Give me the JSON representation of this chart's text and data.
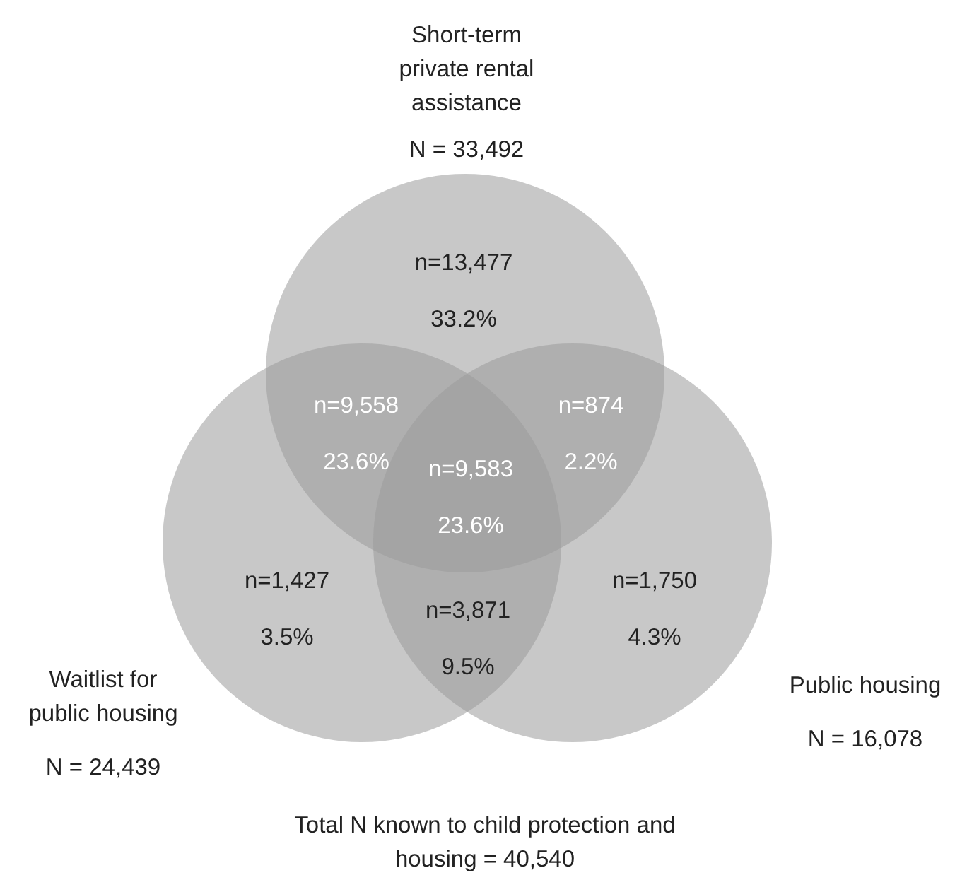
{
  "chart_data": {
    "type": "other",
    "categories": [
      "Short-term private rental assistance",
      "Waitlist for public housing",
      "Public housing"
    ],
    "values": [
      33492,
      24439,
      16078
    ],
    "value_labels": [
      "N = 33,492",
      "N = 24,439",
      "N = 16,078"
    ],
    "colors": [
      "#9a9a9a",
      "#9a9a9a",
      "#9a9a9a"
    ],
    "annotations": [
      "n=13,477",
      "33.2%",
      "n=9,558",
      "23.6%",
      "n=874",
      "2.2%",
      "n=9,583",
      "23.6%",
      "n=1,427",
      "3.5%",
      "n=3,871",
      "9.5%",
      "n=1,750",
      "4.3%",
      "Total N known to child protection and housing = 40,540"
    ]
  }
}
